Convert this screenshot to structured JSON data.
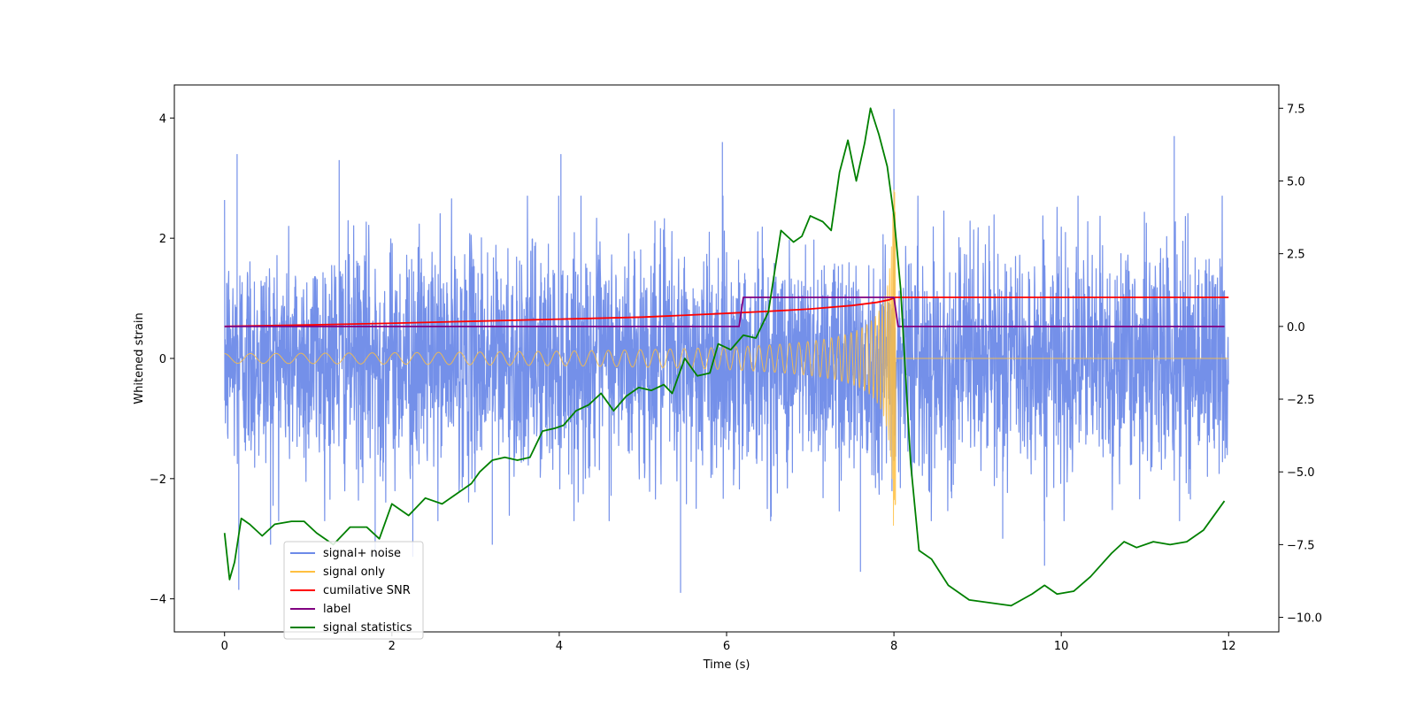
{
  "chart_data": {
    "type": "line",
    "xlabel": "Time (s)",
    "ylabel": "Whitened strain",
    "xlim": [
      -0.6,
      12.6
    ],
    "ylim_left": [
      -4.55,
      4.55
    ],
    "ylim_right": [
      -10.5,
      8.3
    ],
    "xticks": [
      0,
      2,
      4,
      6,
      8,
      10,
      12
    ],
    "yticks_left": [
      -4,
      -2,
      0,
      2,
      4
    ],
    "yticks_right": [
      -10.0,
      -7.5,
      -5.0,
      -2.5,
      0.0,
      2.5,
      5.0,
      7.5
    ],
    "legend_position": "lower-left",
    "series": [
      {
        "name": "signal+ noise",
        "axis": "left",
        "color": "#6d8ae8",
        "description": "broadband noise, roughly symmetric around 0, spanning about -2 to +2 with spikes to about ±3.5",
        "duration": 12.0,
        "amplitude": 1.0,
        "peak_values": [
          [
            0.15,
            3.4
          ],
          [
            0.17,
            -3.85
          ],
          [
            0.55,
            -3.1
          ],
          [
            1.37,
            3.3
          ],
          [
            1.8,
            -3.3
          ],
          [
            2.25,
            -3.3
          ],
          [
            3.2,
            -3.1
          ],
          [
            4.02,
            3.4
          ],
          [
            5.45,
            -3.9
          ],
          [
            5.95,
            3.6
          ],
          [
            7.6,
            -3.55
          ],
          [
            8.0,
            4.15
          ],
          [
            9.3,
            -3.0
          ],
          [
            9.8,
            -3.45
          ],
          [
            11.35,
            3.7
          ]
        ]
      },
      {
        "name": "signal only",
        "axis": "left",
        "color": "#ffc040",
        "description": "chirp oscillation growing in amplitude and frequency until merger near t=8, zero afterwards",
        "duration": 12.0,
        "merger_time": 8.02,
        "peak_amplitude": 3.3,
        "start_amplitude": 0.08
      },
      {
        "name": "cumilative SNR",
        "axis": "right",
        "color": "#ff0000",
        "x": [
          0,
          1,
          2,
          3,
          4,
          5,
          6,
          6.5,
          7,
          7.5,
          7.8,
          7.95,
          8.02,
          8.05,
          12
        ],
        "y": [
          0.0,
          0.05,
          0.11,
          0.18,
          0.25,
          0.32,
          0.45,
          0.52,
          0.6,
          0.72,
          0.83,
          0.92,
          1.0,
          1.0,
          1.0
        ]
      },
      {
        "name": "label",
        "axis": "right",
        "color": "#800080",
        "x": [
          0,
          6.15,
          6.2,
          8.0,
          8.05,
          11.95
        ],
        "y": [
          0.0,
          0.0,
          1.0,
          1.0,
          0.0,
          0.0
        ]
      },
      {
        "name": "signal statistics",
        "axis": "right",
        "color": "#008000",
        "x": [
          0.0,
          0.06,
          0.12,
          0.2,
          0.3,
          0.45,
          0.6,
          0.8,
          0.95,
          1.1,
          1.3,
          1.5,
          1.7,
          1.85,
          2.0,
          2.2,
          2.4,
          2.6,
          2.8,
          2.95,
          3.05,
          3.2,
          3.35,
          3.5,
          3.65,
          3.8,
          3.95,
          4.05,
          4.2,
          4.35,
          4.5,
          4.65,
          4.8,
          4.95,
          5.1,
          5.25,
          5.35,
          5.5,
          5.65,
          5.8,
          5.9,
          6.05,
          6.2,
          6.35,
          6.5,
          6.65,
          6.8,
          6.9,
          7.0,
          7.15,
          7.25,
          7.35,
          7.45,
          7.55,
          7.65,
          7.72,
          7.82,
          7.92,
          8.0,
          8.08,
          8.2,
          8.3,
          8.45,
          8.65,
          8.9,
          9.15,
          9.4,
          9.65,
          9.8,
          9.95,
          10.15,
          10.35,
          10.6,
          10.75,
          10.9,
          11.1,
          11.3,
          11.5,
          11.7,
          11.95
        ],
        "y": [
          -7.1,
          -8.7,
          -8.1,
          -6.6,
          -6.8,
          -7.2,
          -6.8,
          -6.7,
          -6.7,
          -7.1,
          -7.5,
          -6.9,
          -6.9,
          -7.3,
          -6.1,
          -6.5,
          -5.9,
          -6.1,
          -5.7,
          -5.4,
          -5.0,
          -4.6,
          -4.5,
          -4.6,
          -4.5,
          -3.6,
          -3.5,
          -3.4,
          -2.9,
          -2.7,
          -2.3,
          -2.9,
          -2.4,
          -2.1,
          -2.2,
          -2.0,
          -2.3,
          -1.1,
          -1.7,
          -1.6,
          -0.6,
          -0.8,
          -0.3,
          -0.4,
          0.5,
          3.3,
          2.9,
          3.1,
          3.8,
          3.6,
          3.3,
          5.3,
          6.4,
          5.0,
          6.3,
          7.5,
          6.6,
          5.5,
          3.8,
          1.3,
          -4.7,
          -7.7,
          -8.0,
          -8.9,
          -9.4,
          -9.5,
          -9.6,
          -9.2,
          -8.9,
          -9.2,
          -9.1,
          -8.6,
          -7.8,
          -7.4,
          -7.6,
          -7.4,
          -7.5,
          -7.4,
          -7.0,
          -6.0
        ]
      }
    ]
  }
}
